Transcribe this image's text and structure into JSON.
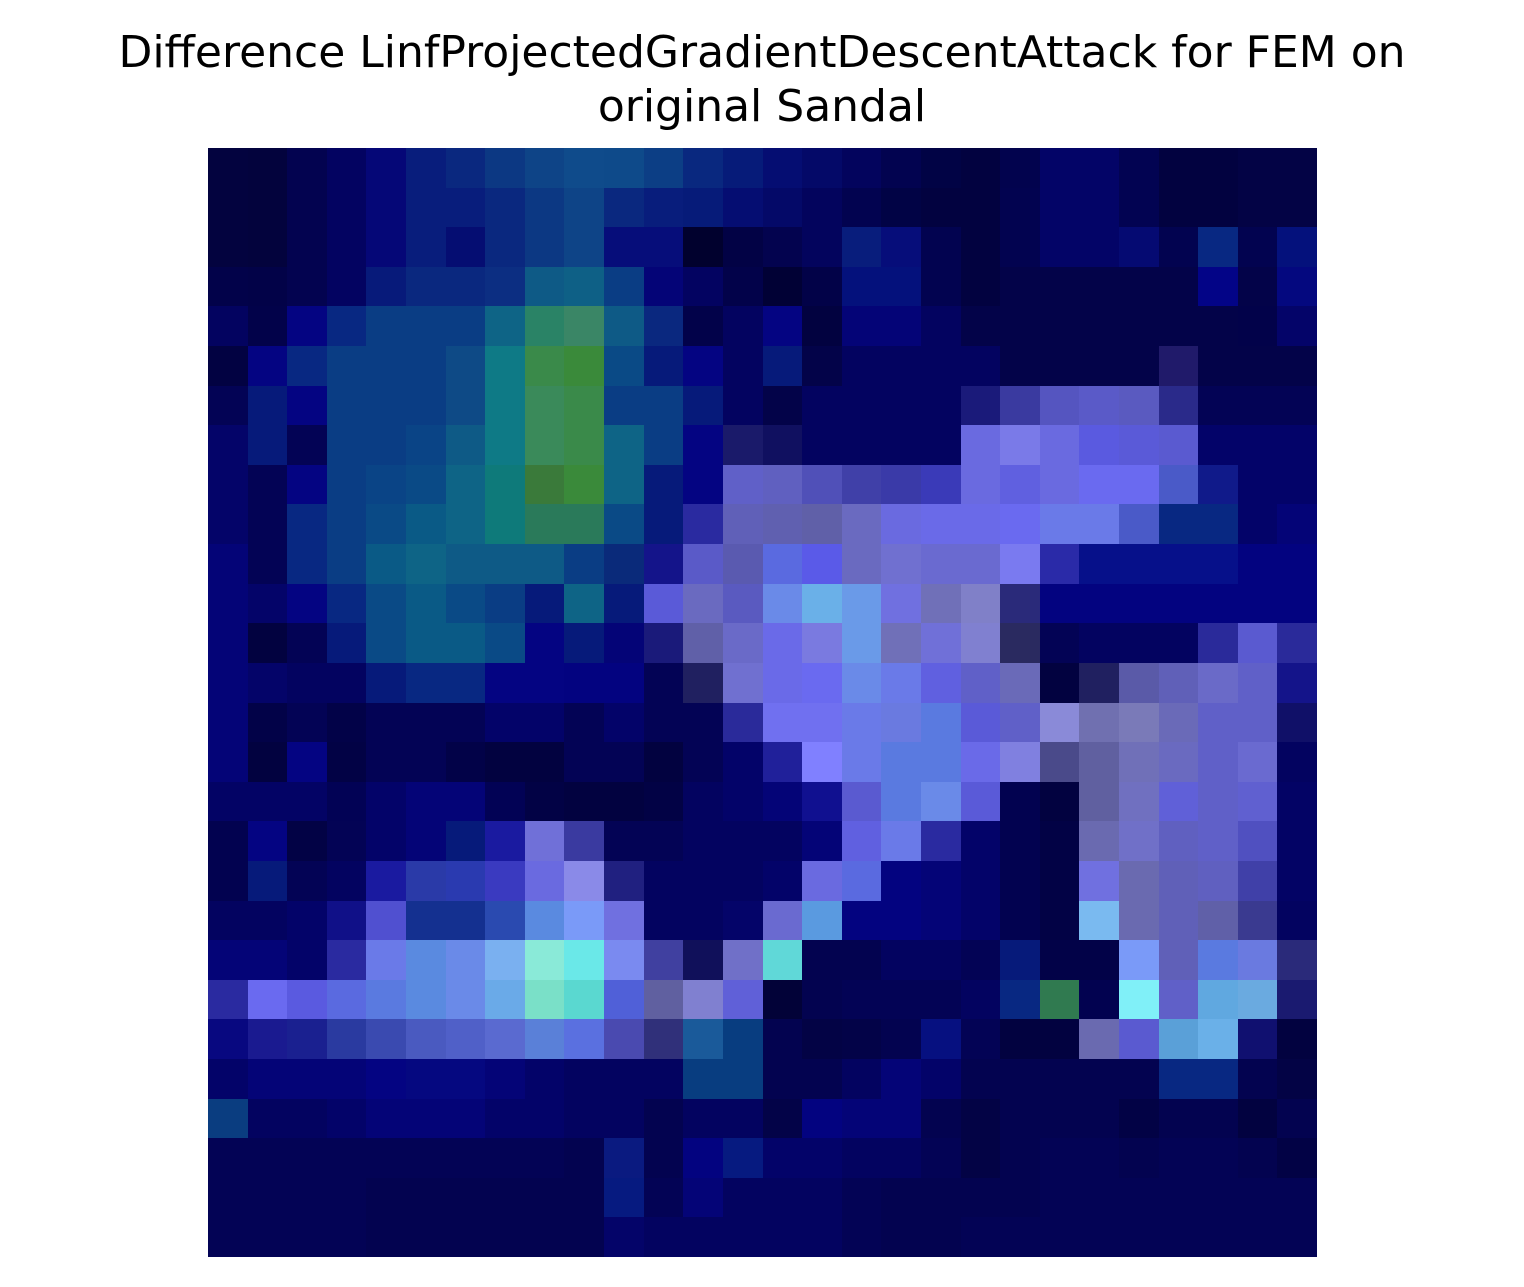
{
  "chart_data": {
    "type": "heatmap",
    "title_lines": [
      "Difference LinfProjectedGradientDescentAttack for FEM on",
      "original Sandal"
    ],
    "rows": 28,
    "cols": 28,
    "axes": "off",
    "grid": false,
    "legend": "none",
    "colors": [
      [
        "#03033f",
        "#03033d",
        "#030350",
        "#030361",
        "#050777",
        "#081d7c",
        "#0a287f",
        "#0c3883",
        "#0e4487",
        "#0f4b8b",
        "#0e4a8a",
        "#0c3e85",
        "#09287f",
        "#061b79",
        "#050d72",
        "#040968",
        "#03045d",
        "#020350",
        "#010345",
        "#020240",
        "#02034e",
        "#030467",
        "#030467",
        "#020352",
        "#020240",
        "#020240",
        "#030345",
        "#030345"
      ],
      [
        "#03033f",
        "#03033d",
        "#030350",
        "#030361",
        "#050777",
        "#081d7c",
        "#081d7c",
        "#0a287f",
        "#0c3883",
        "#0e4487",
        "#0a287f",
        "#081d7c",
        "#061b79",
        "#050d72",
        "#040968",
        "#03045d",
        "#020350",
        "#010345",
        "#020240",
        "#020240",
        "#020350",
        "#030467",
        "#030467",
        "#020352",
        "#020240",
        "#020240",
        "#030345",
        "#030345"
      ],
      [
        "#03033f",
        "#03033d",
        "#030350",
        "#030361",
        "#050777",
        "#081d7c",
        "#050d72",
        "#0a287f",
        "#0c3883",
        "#0e4487",
        "#060d7a",
        "#060d7a",
        "#01012e",
        "#020245",
        "#03034f",
        "#03045d",
        "#081d7c",
        "#060d7a",
        "#020350",
        "#020240",
        "#020350",
        "#030467",
        "#030467",
        "#050a72",
        "#020350",
        "#082882",
        "#020350",
        "#04117c"
      ],
      [
        "#02024a",
        "#020248",
        "#030350",
        "#030361",
        "#071a7a",
        "#0a287f",
        "#0a287f",
        "#0c2e82",
        "#0e5a86",
        "#0e6086",
        "#0a3d84",
        "#040477",
        "#030361",
        "#02024a",
        "#010135",
        "#020248",
        "#04117c",
        "#04117c",
        "#020350",
        "#020240",
        "#030349",
        "#030349",
        "#030349",
        "#030349",
        "#030349",
        "#030487",
        "#030349",
        "#04087f"
      ],
      [
        "#030360",
        "#02024a",
        "#040482",
        "#082882",
        "#0a3d84",
        "#0a3d84",
        "#0a3d84",
        "#0e6486",
        "#2a8366",
        "#3a8666",
        "#0e5a86",
        "#0a287f",
        "#02024a",
        "#030360",
        "#040482",
        "#020240",
        "#040477",
        "#040477",
        "#030360",
        "#030349",
        "#030349",
        "#030349",
        "#030349",
        "#030349",
        "#030349",
        "#030349",
        "#02024a",
        "#040469"
      ],
      [
        "#020242",
        "#040482",
        "#082882",
        "#0a3d84",
        "#0a3d84",
        "#0a3d84",
        "#0e4a86",
        "#0e7a86",
        "#3a8a4a",
        "#3a8a3a",
        "#0a4a86",
        "#061a7a",
        "#040482",
        "#030360",
        "#061a7a",
        "#030349",
        "#030360",
        "#030360",
        "#030360",
        "#030360",
        "#030349",
        "#030349",
        "#030349",
        "#030349",
        "#201a6a",
        "#030349",
        "#030349",
        "#030349"
      ],
      [
        "#030355",
        "#061a7a",
        "#040482",
        "#0a3d84",
        "#0a3d84",
        "#0a3d84",
        "#0e4a86",
        "#0e7a86",
        "#3a8a5a",
        "#3a8a4a",
        "#0a3d84",
        "#0a3d84",
        "#061a7a",
        "#030360",
        "#030349",
        "#030360",
        "#030360",
        "#030360",
        "#030360",
        "#1a1a7a",
        "#3a3aa0",
        "#5555c0",
        "#5a5ac8",
        "#5a5ac0",
        "#2a2a8a",
        "#030355",
        "#030355",
        "#030355"
      ],
      [
        "#040469",
        "#061a7a",
        "#030355",
        "#0a3d84",
        "#0a3d84",
        "#0a4486",
        "#0e5a86",
        "#0e7a86",
        "#3a8a5a",
        "#3a8a4a",
        "#0e6486",
        "#0a3d84",
        "#040482",
        "#1a1a6a",
        "#101060",
        "#030360",
        "#030360",
        "#030360",
        "#030360",
        "#6a6ae0",
        "#7a7ae8",
        "#6a6ae0",
        "#5a5ae0",
        "#5a5ad8",
        "#5a5ad0",
        "#030369",
        "#030369",
        "#030369"
      ],
      [
        "#040469",
        "#030355",
        "#040482",
        "#0a3d84",
        "#0a4486",
        "#0a4a86",
        "#0e6486",
        "#0e7a7a",
        "#3a7a3a",
        "#3a8a3a",
        "#0e6486",
        "#061a7a",
        "#040482",
        "#6060c8",
        "#6060c0",
        "#5050b8",
        "#4040a8",
        "#3a3aa8",
        "#3a3ab8",
        "#6a6ae0",
        "#6060e0",
        "#6a6ae0",
        "#6a6af0",
        "#6a6af0",
        "#4a5ac8",
        "#101a8a",
        "#030369",
        "#030369"
      ],
      [
        "#040469",
        "#030355",
        "#082882",
        "#0a3d84",
        "#0a4a86",
        "#0a5a86",
        "#0e6486",
        "#0e7a7a",
        "#2a7a5a",
        "#2a7a5a",
        "#0a4a86",
        "#061a7a",
        "#2a2aa0",
        "#6060b8",
        "#6060b0",
        "#6060a8",
        "#6a6ac0",
        "#6a6ae0",
        "#6a6ae8",
        "#6a6ae8",
        "#6a6af0",
        "#6a7ae8",
        "#6a7ae8",
        "#4a5ac8",
        "#082882",
        "#082882",
        "#030369",
        "#040477"
      ],
      [
        "#040477",
        "#030355",
        "#082882",
        "#0a3d84",
        "#0a5a86",
        "#0e6486",
        "#0e5a86",
        "#0e5a86",
        "#0e5a86",
        "#0a3d84",
        "#0a2a7a",
        "#14148a",
        "#5a5ac8",
        "#5a5ab0",
        "#5a6ae0",
        "#5a5ae8",
        "#6a6ac0",
        "#7070d0",
        "#6a6ad0",
        "#6a6ad0",
        "#7a7af0",
        "#2a2aa8",
        "#06108a",
        "#06108a",
        "#06108a",
        "#06108a",
        "#030380",
        "#030380"
      ],
      [
        "#040477",
        "#040469",
        "#040482",
        "#082882",
        "#0a4a86",
        "#0a5a86",
        "#0a4a86",
        "#0a3d84",
        "#061a7a",
        "#0e6486",
        "#061a7a",
        "#5a5ad8",
        "#6a6ac0",
        "#5a5ac0",
        "#6a8ae8",
        "#6ab0e8",
        "#6a9ae8",
        "#7070e0",
        "#7070b8",
        "#8080c8",
        "#2a2a7a",
        "#030380",
        "#030380",
        "#030380",
        "#030380",
        "#030380",
        "#030380",
        "#030380"
      ],
      [
        "#040477",
        "#020240",
        "#030355",
        "#061a7a",
        "#0a4a86",
        "#0a5a86",
        "#0a5a86",
        "#0a4a86",
        "#040482",
        "#061a7a",
        "#040477",
        "#1a1a7a",
        "#6060a8",
        "#6a6ac8",
        "#6a6ae8",
        "#7a7ae0",
        "#6a9ae8",
        "#7070b8",
        "#7070d8",
        "#8080d0",
        "#2a2a60",
        "#030355",
        "#030360",
        "#030360",
        "#030360",
        "#2a2a9a",
        "#5a5ad0",
        "#2a2a9a"
      ],
      [
        "#040477",
        "#040469",
        "#030360",
        "#030360",
        "#061a7a",
        "#082882",
        "#082882",
        "#040482",
        "#040482",
        "#030380",
        "#030380",
        "#030355",
        "#202060",
        "#7070d0",
        "#6a6ae8",
        "#6a6af0",
        "#6a8ae8",
        "#6a7ae8",
        "#6060e0",
        "#6060c8",
        "#6a6ab8",
        "#020240",
        "#202060",
        "#5a5aa8",
        "#6060b8",
        "#6a6ac8",
        "#6060c8",
        "#14148a"
      ],
      [
        "#040477",
        "#020248",
        "#030355",
        "#020248",
        "#030355",
        "#030355",
        "#030355",
        "#030369",
        "#030369",
        "#030355",
        "#030369",
        "#030355",
        "#030355",
        "#2a2a9a",
        "#7070f0",
        "#7070f0",
        "#6a7ae8",
        "#6a7ae0",
        "#5a7ae0",
        "#5a5ad8",
        "#6060c8",
        "#8a8ad8",
        "#7070b0",
        "#7a7ab8",
        "#6a6ab8",
        "#6060c8",
        "#6060c8",
        "#101068"
      ],
      [
        "#040477",
        "#020240",
        "#040482",
        "#020245",
        "#030355",
        "#030355",
        "#020248",
        "#020240",
        "#020240",
        "#030355",
        "#030355",
        "#020240",
        "#030355",
        "#030369",
        "#20209a",
        "#8080ff",
        "#6a7ae8",
        "#5a7ae0",
        "#5a7ae0",
        "#6a6ae8",
        "#8080e0",
        "#4a4a8a",
        "#6060a0",
        "#7070b8",
        "#6a6ac0",
        "#6060c8",
        "#6a6ad0",
        "#030360"
      ],
      [
        "#030365",
        "#030365",
        "#030365",
        "#020255",
        "#030369",
        "#040477",
        "#040477",
        "#020255",
        "#020245",
        "#020240",
        "#020240",
        "#020245",
        "#030360",
        "#030369",
        "#040477",
        "#101090",
        "#5a5ad0",
        "#5a7ae0",
        "#6a8ae8",
        "#5a5ad8",
        "#020250",
        "#020240",
        "#6060a0",
        "#7070c0",
        "#6060d8",
        "#6060c8",
        "#6060d0",
        "#030365"
      ],
      [
        "#020250",
        "#040482",
        "#020245",
        "#030355",
        "#030369",
        "#040477",
        "#061a7a",
        "#1a1aa0",
        "#7070d8",
        "#3a3aa0",
        "#030355",
        "#030355",
        "#030360",
        "#030360",
        "#030360",
        "#040477",
        "#6060e0",
        "#6a7ae8",
        "#2a2aa0",
        "#030369",
        "#020250",
        "#020245",
        "#6a6ab0",
        "#7070c8",
        "#6060c0",
        "#6060c8",
        "#5050c0",
        "#030365"
      ],
      [
        "#020250",
        "#061a7a",
        "#030355",
        "#030360",
        "#1a1aa0",
        "#2a3aa8",
        "#2a3ab0",
        "#3a3ac0",
        "#6a6ae0",
        "#8a8ae8",
        "#202080",
        "#030360",
        "#030360",
        "#030360",
        "#030369",
        "#6a6ae0",
        "#5a6ae0",
        "#030380",
        "#040477",
        "#030369",
        "#020250",
        "#020245",
        "#7070e0",
        "#6a6ab0",
        "#6060b8",
        "#6060c0",
        "#4040a8",
        "#030365"
      ],
      [
        "#030360",
        "#030360",
        "#030369",
        "#101088",
        "#5050d0",
        "#143090",
        "#143090",
        "#2a4ab0",
        "#5a8ae0",
        "#7a9af8",
        "#7070e0",
        "#030360",
        "#030360",
        "#040469",
        "#6a6ad0",
        "#5a9ae0",
        "#030380",
        "#030380",
        "#040477",
        "#030369",
        "#020250",
        "#020245",
        "#7abaf0",
        "#6a6ab0",
        "#6060b8",
        "#6060a8",
        "#3a3a90",
        "#030360"
      ],
      [
        "#040477",
        "#040477",
        "#030369",
        "#2a2aa0",
        "#6a7ae8",
        "#5a8ae0",
        "#6a8ae8",
        "#7ab0f0",
        "#8aead8",
        "#6ae8e8",
        "#7a8af0",
        "#4040a0",
        "#10105a",
        "#7070c8",
        "#60d8d8",
        "#030350",
        "#030350",
        "#030360",
        "#030360",
        "#030355",
        "#061a7a",
        "#020248",
        "#020248",
        "#7a9af8",
        "#6060b8",
        "#5a7ae0",
        "#6a7ae0",
        "#2a2a7a",
        "#030350"
      ],
      [
        "#2a2aa0",
        "#6a6af0",
        "#5a5ae0",
        "#5a6ae0",
        "#5a7ae0",
        "#5a8ae0",
        "#6a8ae8",
        "#6aaae8",
        "#7ae0c8",
        "#5ad8d0",
        "#5060d8",
        "#6060a0",
        "#8080d0",
        "#6060d8",
        "#020238",
        "#030350",
        "#030355",
        "#030355",
        "#030355",
        "#030360",
        "#082882",
        "#307a50",
        "#020250",
        "#80f0f8",
        "#6060c8",
        "#60a8e0",
        "#6aaae0",
        "#1a1a70",
        "#030350"
      ],
      [
        "#080880",
        "#1a1a90",
        "#1a2090",
        "#2a3aa0",
        "#3a4ab0",
        "#4a5ac0",
        "#5060c8",
        "#5a6ad0",
        "#5a80d8",
        "#5a70e0",
        "#4a4ab0",
        "#30307a",
        "#1a5a9a",
        "#083d80",
        "#030350",
        "#030345",
        "#030348",
        "#030350",
        "#061080",
        "#030355",
        "#020240",
        "#020240",
        "#6a6ab0",
        "#5a5ad0",
        "#5aa0d8",
        "#6ab0e8",
        "#101070",
        "#020240"
      ],
      [
        "#030369",
        "#040477",
        "#040477",
        "#040477",
        "#040482",
        "#050880",
        "#050880",
        "#040477",
        "#030369",
        "#030360",
        "#030360",
        "#030360",
        "#083d80",
        "#083d80",
        "#030350",
        "#030350",
        "#030360",
        "#040477",
        "#030369",
        "#030350",
        "#030350",
        "#030350",
        "#030350",
        "#030350",
        "#082882",
        "#082882",
        "#030350",
        "#030345"
      ],
      [
        "#0a3d80",
        "#030360",
        "#030360",
        "#030369",
        "#040477",
        "#040477",
        "#040477",
        "#030369",
        "#030369",
        "#030360",
        "#030360",
        "#030350",
        "#030360",
        "#030360",
        "#030348",
        "#030380",
        "#040477",
        "#040477",
        "#030350",
        "#030345",
        "#030350",
        "#030350",
        "#030350",
        "#020245",
        "#030350",
        "#030350",
        "#020240",
        "#030350"
      ],
      [
        "#030355",
        "#030355",
        "#030355",
        "#030355",
        "#030355",
        "#030355",
        "#030355",
        "#030355",
        "#030355",
        "#030350",
        "#0a1a80",
        "#030350",
        "#030380",
        "#061a80",
        "#030369",
        "#030369",
        "#030360",
        "#030360",
        "#030355",
        "#030345",
        "#030350",
        "#030355",
        "#030355",
        "#030350",
        "#030355",
        "#030355",
        "#030350",
        "#020245"
      ],
      [
        "#030355",
        "#030355",
        "#030355",
        "#030355",
        "#030350",
        "#030350",
        "#030350",
        "#030350",
        "#030350",
        "#030350",
        "#061a80",
        "#030355",
        "#040477",
        "#030360",
        "#030360",
        "#030360",
        "#030355",
        "#030350",
        "#030350",
        "#030350",
        "#030350",
        "#030355",
        "#030355",
        "#030355",
        "#030355",
        "#030355",
        "#030355",
        "#030355"
      ],
      [
        "#030355",
        "#030355",
        "#030355",
        "#030355",
        "#030350",
        "#030350",
        "#030350",
        "#030350",
        "#030350",
        "#030350",
        "#040469",
        "#030360",
        "#030360",
        "#030360",
        "#030360",
        "#030360",
        "#030355",
        "#030350",
        "#030350",
        "#030355",
        "#030355",
        "#030355",
        "#030355",
        "#030355",
        "#030355",
        "#030355",
        "#030355",
        "#030355"
      ]
    ]
  }
}
